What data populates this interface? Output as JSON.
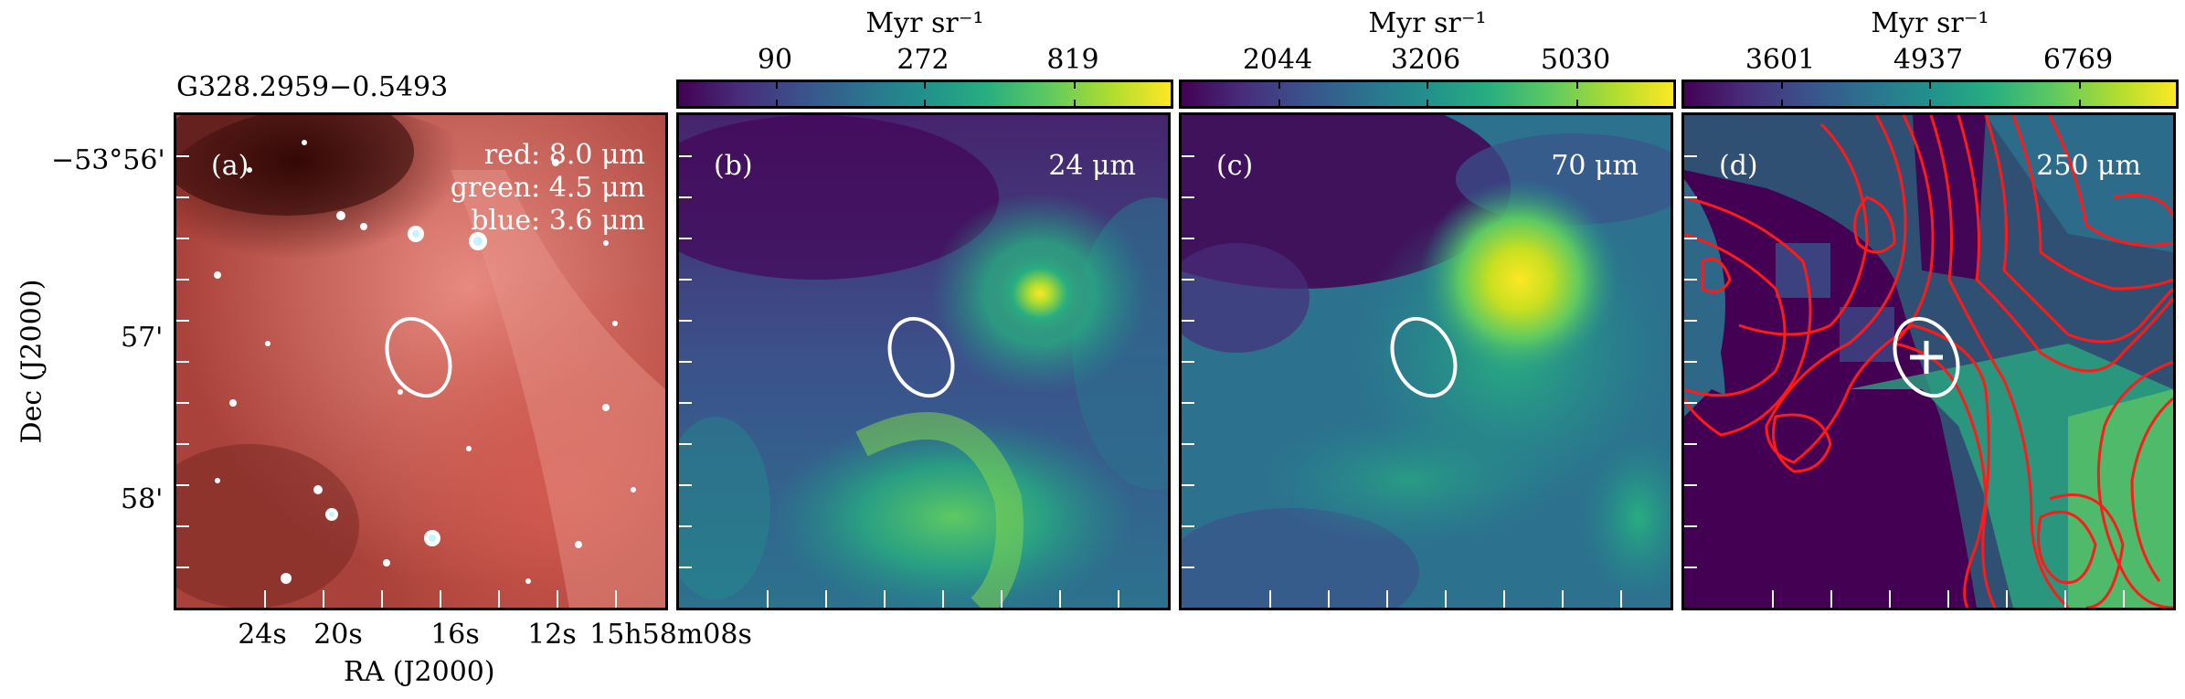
{
  "source_name": "G328.2959−0.5493",
  "axes": {
    "y_title": "Dec (J2000)",
    "x_title": "RA (J2000)",
    "y_ticks": [
      "−53°56'",
      "57'",
      "58'"
    ],
    "x_ticks": [
      "24s",
      "20s",
      "16s",
      "12s",
      "15h58m08s"
    ]
  },
  "panels": [
    {
      "id": "a",
      "label": "(a)",
      "channels": [
        "red: 8.0 μm",
        "green: 4.5 μm",
        "blue: 3.6 μm"
      ]
    },
    {
      "id": "b",
      "label": "(b)",
      "band": "24 μm",
      "colorbar": {
        "unit": "Myr sr⁻¹",
        "ticks": [
          "90",
          "272",
          "819"
        ]
      }
    },
    {
      "id": "c",
      "label": "(c)",
      "band": "70 μm",
      "colorbar": {
        "unit": "Myr sr⁻¹",
        "ticks": [
          "2044",
          "3206",
          "5030"
        ]
      }
    },
    {
      "id": "d",
      "label": "(d)",
      "band": "250 μm",
      "colorbar": {
        "unit": "Myr sr⁻¹",
        "ticks": [
          "3601",
          "4937",
          "6769"
        ]
      }
    }
  ],
  "colors": {
    "ellipse": "#ffffff",
    "contour": "#ff1a1a",
    "viridis_low": "#440154",
    "viridis_mid": "#21918c",
    "viridis_high": "#fde725"
  }
}
